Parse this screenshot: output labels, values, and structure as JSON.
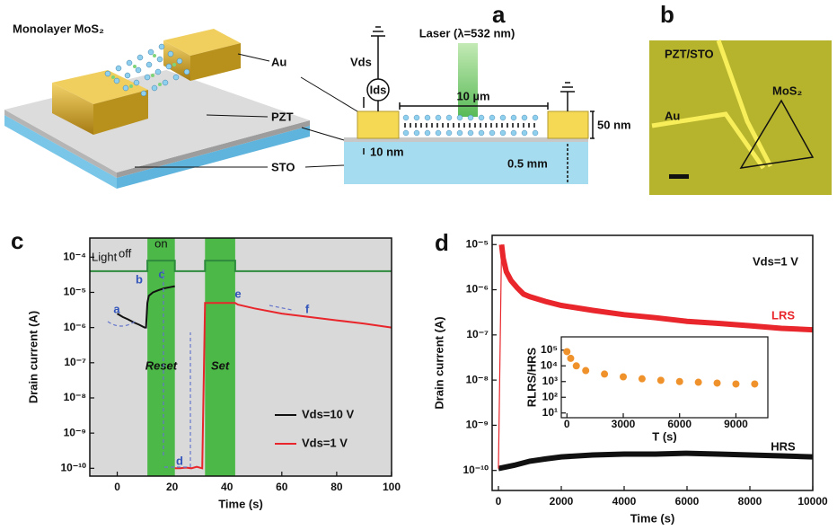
{
  "figure": {
    "panels": [
      "a",
      "b",
      "c",
      "d"
    ]
  },
  "schematic": {
    "monolayer": "Monolayer MoS₂",
    "au": "Au",
    "pzt": "PZT",
    "sto": "STO",
    "laser": "Laser (λ=532 nm)",
    "vds": "Vds",
    "ids": "Ids",
    "width": "10 µm",
    "height": "50 nm",
    "pzt_thickness": "10 nm",
    "sto_thickness": "0.5 mm"
  },
  "micrograph": {
    "substrate": "PZT/STO",
    "electrode": "Au",
    "flake": "MoS₂"
  },
  "chart_data": [
    {
      "type": "line",
      "xlabel": "Time (s)",
      "ylabel": "Drain current (A)",
      "yscale": "log",
      "background": "#d9d9d9",
      "xlim": [
        -10,
        100
      ],
      "ylim": [
        6e-11,
        0.00035
      ],
      "xticks": [
        0,
        20,
        40,
        60,
        80,
        100
      ],
      "yticks": [
        {
          "value": 1e-10,
          "label": "10⁻¹⁰"
        },
        {
          "value": 1e-09,
          "label": "10⁻⁹"
        },
        {
          "value": 1e-08,
          "label": "10⁻⁸"
        },
        {
          "value": 1e-07,
          "label": "10⁻⁷"
        },
        {
          "value": 1e-06,
          "label": "10⁻⁶"
        },
        {
          "value": 1e-05,
          "label": "10⁻⁵"
        },
        {
          "value": 0.0001,
          "label": "10⁻⁴"
        }
      ],
      "series": [
        {
          "name": "Vds=10 V",
          "color": "#111111",
          "x": [
            0,
            2,
            4,
            6,
            8,
            10,
            10.5,
            11,
            11.5,
            13,
            15,
            17,
            19,
            21
          ],
          "values": [
            2.5e-06,
            2e-06,
            1.7e-06,
            1.4e-06,
            1.2e-06,
            1e-06,
            1e-06,
            5e-06,
            8e-06,
            1e-05,
            1.15e-05,
            1.3e-05,
            1.4e-05,
            1.5e-05
          ]
        },
        {
          "name": "Vds=1 V",
          "color": "#e8262b",
          "x": [
            21,
            23,
            25,
            27,
            29,
            31,
            32,
            33,
            35,
            43,
            44,
            50,
            60,
            70,
            80,
            90,
            100
          ],
          "values": [
            1e-10,
            1e-10,
            1.05e-10,
            1e-10,
            1.1e-10,
            1e-10,
            5e-06,
            5e-06,
            5e-06,
            5e-06,
            4.5e-06,
            3.5e-06,
            2.5e-06,
            2e-06,
            1.6e-06,
            1.3e-06,
            1e-06
          ]
        }
      ],
      "light": {
        "label": "Light",
        "states": [
          "off",
          "on"
        ],
        "color": "#2e8b3e",
        "x": [
          -10,
          11,
          11,
          21,
          21,
          32,
          32,
          43,
          43,
          100
        ],
        "values": [
          4e-05,
          4e-05,
          8e-05,
          8e-05,
          4e-05,
          4e-05,
          8e-05,
          8e-05,
          4e-05,
          4e-05
        ]
      },
      "region_color": "#4cb847",
      "regions": [
        {
          "label": "Reset",
          "x": [
            11,
            21
          ]
        },
        {
          "label": "Set",
          "x": [
            32,
            43
          ]
        }
      ],
      "point_labels": [
        "a",
        "b",
        "c",
        "d",
        "e",
        "f"
      ]
    },
    {
      "type": "line",
      "xlabel": "Time (s)",
      "ylabel": "Drain current (A)",
      "yscale": "log",
      "annotation": "Vds=1 V",
      "xlim": [
        -200,
        10000
      ],
      "ylim": [
        3.6e-11,
        1.6e-05
      ],
      "xticks": [
        0,
        2000,
        4000,
        6000,
        8000,
        10000
      ],
      "yticks": [
        {
          "value": 1e-10,
          "label": "10⁻¹⁰"
        },
        {
          "value": 1e-09,
          "label": "10⁻⁹"
        },
        {
          "value": 1e-08,
          "label": "10⁻⁸"
        },
        {
          "value": 1e-07,
          "label": "10⁻⁷"
        },
        {
          "value": 1e-06,
          "label": "10⁻⁶"
        },
        {
          "value": 1e-05,
          "label": "10⁻⁵"
        }
      ],
      "series": [
        {
          "name": "LRS",
          "color": "#e8262b",
          "x": [
            100,
            150,
            250,
            400,
            600,
            800,
            1000,
            1500,
            2000,
            3000,
            4000,
            5000,
            6000,
            7000,
            8000,
            9000,
            10000
          ],
          "values": [
            1e-05,
            5e-06,
            2.5e-06,
            1.6e-06,
            1.1e-06,
            8e-07,
            7e-07,
            5.5e-07,
            4.5e-07,
            3.5e-07,
            2.8e-07,
            2.4e-07,
            2e-07,
            1.8e-07,
            1.6e-07,
            1.4e-07,
            1.3e-07
          ]
        },
        {
          "name": "HRS",
          "color": "#111111",
          "x": [
            0,
            500,
            1000,
            1500,
            2000,
            3000,
            4000,
            5000,
            6000,
            7000,
            8000,
            9000,
            10000
          ],
          "values": [
            1.1e-10,
            1.3e-10,
            1.6e-10,
            1.8e-10,
            2e-10,
            2.2e-10,
            2.3e-10,
            2.3e-10,
            2.4e-10,
            2.3e-10,
            2.2e-10,
            2.1e-10,
            2e-10
          ]
        }
      ]
    },
    {
      "type": "scatter",
      "xlabel": "T (s)",
      "ylabel": "RLRS/HRS",
      "yscale": "log",
      "color": "#f0922b",
      "xlim": [
        -300,
        10700
      ],
      "ylim": [
        5,
        700000.0
      ],
      "xticks": [
        0,
        3000,
        6000,
        9000
      ],
      "yticks": [
        {
          "value": 10,
          "label": "10¹"
        },
        {
          "value": 100,
          "label": "10²"
        },
        {
          "value": 1000,
          "label": "10³"
        },
        {
          "value": 10000,
          "label": "10⁴"
        },
        {
          "value": 100000,
          "label": "10⁵"
        }
      ],
      "x": [
        0,
        200,
        500,
        1000,
        2000,
        3000,
        4000,
        5000,
        6000,
        7000,
        8000,
        9000,
        10000
      ],
      "values": [
        80000,
        30000,
        10000,
        5000,
        3000,
        2000,
        1500,
        1200,
        1000,
        900,
        800,
        700,
        700
      ]
    }
  ]
}
